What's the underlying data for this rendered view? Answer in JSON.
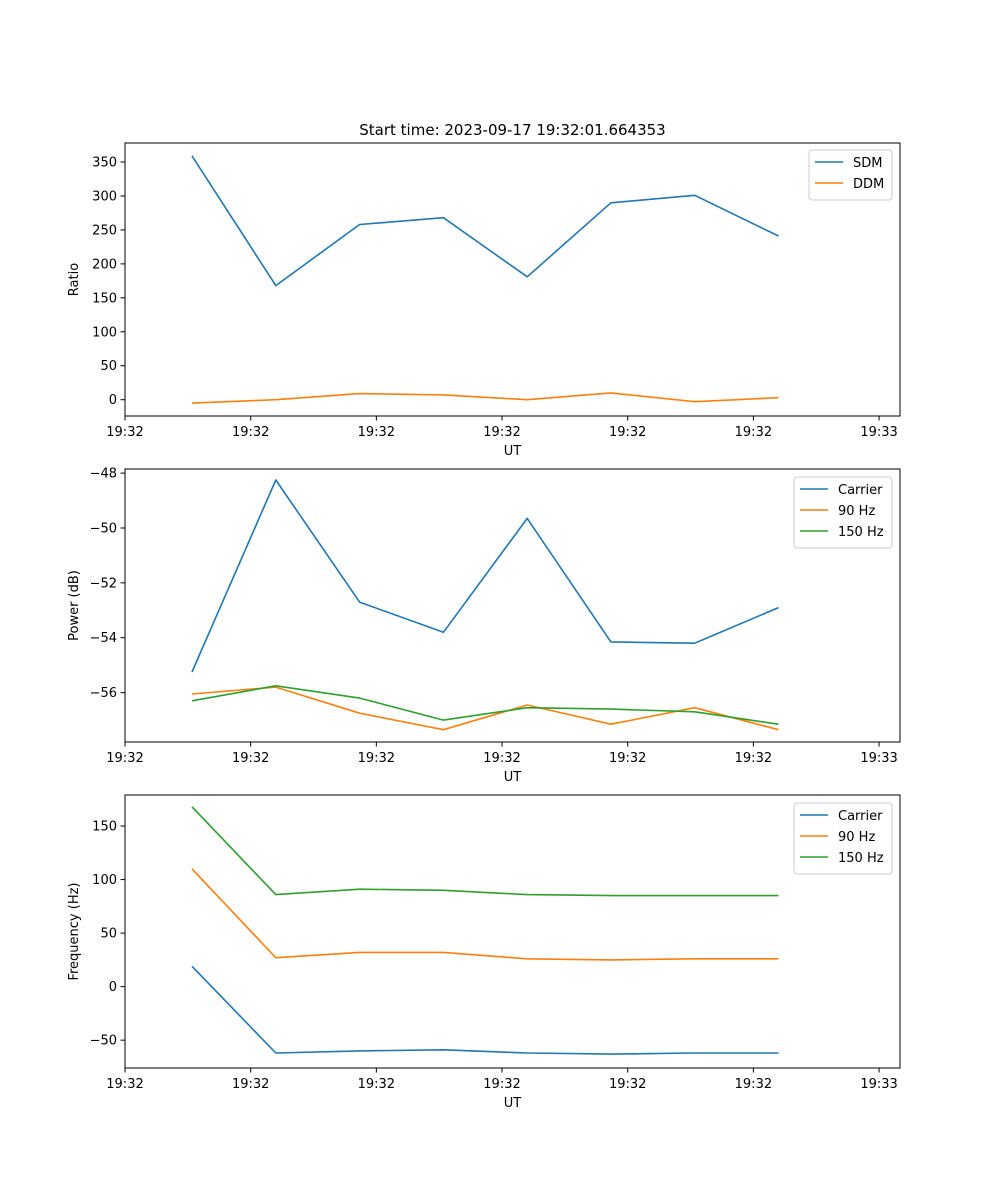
{
  "chart_data": [
    {
      "type": "line",
      "title": "Start time: 2023-09-17 19:32:01.664353",
      "xlabel": "UT",
      "ylabel": "Ratio",
      "x": [
        1,
        2,
        3,
        4,
        5,
        6,
        7,
        8
      ],
      "xlim": [
        0.2,
        9.45
      ],
      "x_ticks": [
        0.2,
        1.7,
        3.2,
        4.7,
        6.2,
        7.7,
        9.2
      ],
      "x_tick_labels": [
        "19:32",
        "19:32",
        "19:32",
        "19:32",
        "19:32",
        "19:32",
        "19:33"
      ],
      "ylim": [
        -24,
        378
      ],
      "y_ticks": [
        0,
        50,
        100,
        150,
        200,
        250,
        300,
        350
      ],
      "y_tick_labels": [
        "0",
        "50",
        "100",
        "150",
        "200",
        "250",
        "300",
        "350"
      ],
      "legend": "top-right",
      "grid": false,
      "series": [
        {
          "name": "SDM",
          "color": "#1f77b4",
          "values": [
            359,
            168,
            258,
            268,
            181,
            290,
            301,
            241
          ]
        },
        {
          "name": "DDM",
          "color": "#ff7f0e",
          "values": [
            -5,
            0,
            9,
            7,
            0,
            10,
            -3,
            3
          ]
        }
      ]
    },
    {
      "type": "line",
      "xlabel": "UT",
      "ylabel": "Power (dB)",
      "x": [
        1,
        2,
        3,
        4,
        5,
        6,
        7,
        8
      ],
      "xlim": [
        0.2,
        9.45
      ],
      "x_ticks": [
        0.2,
        1.7,
        3.2,
        4.7,
        6.2,
        7.7,
        9.2
      ],
      "x_tick_labels": [
        "19:32",
        "19:32",
        "19:32",
        "19:32",
        "19:32",
        "19:32",
        "19:33"
      ],
      "ylim": [
        -57.8,
        -47.85
      ],
      "y_ticks": [
        -56,
        -54,
        -52,
        -50,
        -48
      ],
      "y_tick_labels": [
        "−56",
        "−54",
        "−52",
        "−50",
        "−48"
      ],
      "legend": "top-right",
      "grid": false,
      "series": [
        {
          "name": "Carrier",
          "color": "#1f77b4",
          "values": [
            -55.25,
            -48.25,
            -52.7,
            -53.8,
            -49.65,
            -54.15,
            -54.2,
            -52.9
          ]
        },
        {
          "name": "90 Hz",
          "color": "#ff7f0e",
          "values": [
            -56.05,
            -55.8,
            -56.75,
            -57.35,
            -56.45,
            -57.15,
            -56.55,
            -57.35
          ]
        },
        {
          "name": "150 Hz",
          "color": "#2ca02c",
          "values": [
            -56.3,
            -55.75,
            -56.2,
            -57.0,
            -56.55,
            -56.6,
            -56.7,
            -57.15
          ]
        }
      ]
    },
    {
      "type": "line",
      "xlabel": "UT",
      "ylabel": "Frequency (Hz)",
      "x": [
        1,
        2,
        3,
        4,
        5,
        6,
        7,
        8
      ],
      "xlim": [
        0.2,
        9.45
      ],
      "x_ticks": [
        0.2,
        1.7,
        3.2,
        4.7,
        6.2,
        7.7,
        9.2
      ],
      "x_tick_labels": [
        "19:32",
        "19:32",
        "19:32",
        "19:32",
        "19:32",
        "19:32",
        "19:33"
      ],
      "ylim": [
        -76,
        179
      ],
      "y_ticks": [
        -50,
        0,
        50,
        100,
        150
      ],
      "y_tick_labels": [
        "−50",
        "0",
        "50",
        "100",
        "150"
      ],
      "legend": "top-right",
      "grid": false,
      "series": [
        {
          "name": "Carrier",
          "color": "#1f77b4",
          "values": [
            19,
            -62,
            -60,
            -59,
            -62,
            -63,
            -62,
            -62
          ]
        },
        {
          "name": "90 Hz",
          "color": "#ff7f0e",
          "values": [
            110,
            27,
            32,
            32,
            26,
            25,
            26,
            26
          ]
        },
        {
          "name": "150 Hz",
          "color": "#2ca02c",
          "values": [
            168,
            86,
            91,
            90,
            86,
            85,
            85,
            85
          ]
        }
      ]
    }
  ]
}
